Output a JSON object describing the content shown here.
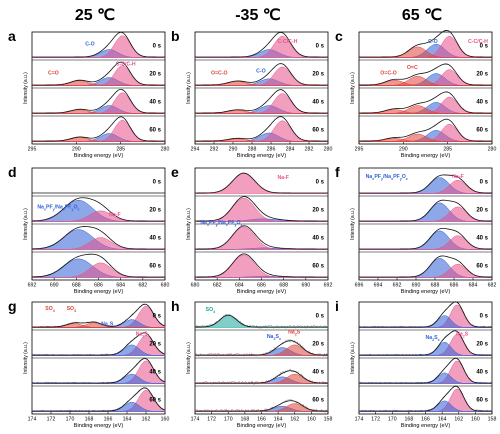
{
  "col_titles": [
    "25 ℃",
    "-35 ℃",
    "65 ℃"
  ],
  "colors": {
    "pink": "#e8518a",
    "blue": "#2f5fd6",
    "red": "#e0433a",
    "teal": "#19a69a",
    "envelope": "#111111",
    "raw": "#8c8c8c",
    "title": "#000000"
  },
  "chart_data": [
    {
      "type": "line",
      "panel": "a",
      "ylabel": "Intensity (a.u.)",
      "xlabel": "Binding energy (eV)",
      "xlim": [
        295,
        280
      ],
      "xticks": [
        295,
        290,
        285,
        280
      ],
      "times": [
        "0 s",
        "20 s",
        "40 s",
        "60 s"
      ],
      "series": [
        {
          "name": "C-O",
          "color": "blue",
          "center": 286.3,
          "width": 1.0,
          "amps": [
            0.3,
            0.3,
            0.3,
            0.3
          ]
        },
        {
          "name": "C-C/C-H",
          "color": "pink",
          "center": 284.8,
          "width": 0.9,
          "amps": [
            0.82,
            0.75,
            0.78,
            0.8
          ]
        },
        {
          "name": "C=O",
          "color": "red",
          "center": 289.6,
          "width": 1.0,
          "amps": [
            0.0,
            0.18,
            0.14,
            0.15
          ]
        }
      ],
      "annotations": [
        "C-O",
        "C=O",
        "C-C/C-H"
      ]
    },
    {
      "type": "line",
      "panel": "b",
      "ylabel": "Intensity (a.u.)",
      "xlabel": "Binding energy (eV)",
      "xlim": [
        294,
        280
      ],
      "xticks": [
        294,
        292,
        290,
        288,
        286,
        284,
        282,
        280
      ],
      "times": [
        "0 s",
        "20 s",
        "40 s",
        "60 s"
      ],
      "series": [
        {
          "name": "C-O",
          "color": "blue",
          "center": 286.2,
          "width": 1.0,
          "amps": [
            0.3,
            0.25,
            0.3,
            0.32
          ]
        },
        {
          "name": "C-C/C-H",
          "color": "pink",
          "center": 284.8,
          "width": 0.9,
          "amps": [
            0.8,
            0.7,
            0.75,
            0.78
          ]
        },
        {
          "name": "O=C-O",
          "color": "red",
          "center": 289.5,
          "width": 1.0,
          "amps": [
            0.0,
            0.15,
            0.12,
            0.1
          ]
        }
      ],
      "annotations": [
        "C-C/C-H",
        "O=C-O",
        "C-O"
      ]
    },
    {
      "type": "line",
      "panel": "c",
      "ylabel": "Intensity (a.u.)",
      "xlabel": "Binding energy (eV)",
      "xlim": [
        295,
        280
      ],
      "xticks": [
        295,
        290,
        285,
        280
      ],
      "times": [
        "0 s",
        "20 s",
        "40 s",
        "60 s"
      ],
      "series": [
        {
          "name": "C-O",
          "color": "blue",
          "center": 286.3,
          "width": 1.0,
          "amps": [
            0.5,
            0.45,
            0.42,
            0.42
          ]
        },
        {
          "name": "C-C/C-H",
          "color": "pink",
          "center": 284.8,
          "width": 0.9,
          "amps": [
            0.8,
            0.6,
            0.62,
            0.65
          ]
        },
        {
          "name": "O=C",
          "color": "red",
          "center": 288.4,
          "width": 1.0,
          "amps": [
            0.4,
            0.35,
            0.3,
            0.28
          ]
        },
        {
          "name": "O=C-O",
          "color": "red",
          "center": 291.0,
          "width": 1.0,
          "amps": [
            0.0,
            0.2,
            0.15,
            0.12
          ]
        }
      ],
      "annotations": [
        "C-O",
        "C-C/C-H",
        "O=C",
        "O=C-O"
      ]
    },
    {
      "type": "line",
      "panel": "d",
      "ylabel": "Intensity (a.u.)",
      "xlabel": "Binding energy (eV)",
      "xlim": [
        692,
        680
      ],
      "xticks": [
        692,
        690,
        688,
        686,
        684,
        682,
        680
      ],
      "times": [
        "0 s",
        "20 s",
        "40 s",
        "60 s"
      ],
      "series": [
        {
          "name": "NaxPFy/NaxPFyOz",
          "color": "blue",
          "center": 687.8,
          "width": 1.3,
          "amps": [
            0.0,
            0.8,
            0.75,
            0.7
          ]
        },
        {
          "name": "Na-F",
          "color": "pink",
          "center": 685.8,
          "width": 1.0,
          "amps": [
            0.0,
            0.4,
            0.45,
            0.55
          ]
        }
      ],
      "annotations": [
        "NaxPFy/NaxPFyOz",
        "Na-F"
      ]
    },
    {
      "type": "line",
      "panel": "e",
      "ylabel": "Intensity (a.u.)",
      "xlabel": "Binding energy (eV)",
      "xlim": [
        680,
        692
      ],
      "xticks": [
        680,
        682,
        684,
        686,
        688,
        690,
        692
      ],
      "times": [
        "0 s",
        "20 s",
        "40 s",
        "60 s"
      ],
      "series": [
        {
          "name": "NaxPFy/NaxPFyOz",
          "color": "blue",
          "center": 686.2,
          "width": 1.3,
          "amps": [
            0.0,
            0.1,
            0.06,
            0.05
          ]
        },
        {
          "name": "Na-F",
          "color": "pink",
          "center": 684.4,
          "width": 1.0,
          "amps": [
            0.75,
            0.88,
            0.85,
            0.85
          ]
        }
      ],
      "annotations": [
        "Na-F",
        "NaxPFy/NaxPFyOz"
      ]
    },
    {
      "type": "line",
      "panel": "f",
      "ylabel": "Intensity (a.u.)",
      "xlabel": "Binding energy (eV)",
      "xlim": [
        696,
        682
      ],
      "xticks": [
        696,
        694,
        692,
        690,
        688,
        686,
        684,
        682
      ],
      "times": [
        "0 s",
        "20 s",
        "40 s",
        "60 s"
      ],
      "series": [
        {
          "name": "NaxPFy/NaxPFyOz",
          "color": "blue",
          "center": 687.5,
          "width": 1.0,
          "amps": [
            0.6,
            0.7,
            0.7,
            0.72
          ]
        },
        {
          "name": "Na-F",
          "color": "pink",
          "center": 685.6,
          "width": 0.9,
          "amps": [
            0.5,
            0.55,
            0.52,
            0.5
          ]
        }
      ],
      "annotations": [
        "NaxPFy/NaxPFyOz",
        "Na-F"
      ]
    },
    {
      "type": "line",
      "panel": "g",
      "ylabel": "Intensity (a.u.)",
      "xlabel": "Binding energy (eV)",
      "xlim": [
        174,
        160
      ],
      "xticks": [
        174,
        172,
        170,
        168,
        166,
        164,
        162,
        160
      ],
      "times": [
        "0 s",
        "20 s",
        "40 s",
        "60 s"
      ],
      "series": [
        {
          "name": "Na2S",
          "color": "pink",
          "center": 162.0,
          "width": 0.8,
          "amps": [
            0.8,
            0.75,
            0.85,
            0.8
          ]
        },
        {
          "name": "Na2Sx",
          "color": "blue",
          "center": 163.5,
          "width": 0.8,
          "amps": [
            0.3,
            0.4,
            0.35,
            0.35
          ]
        },
        {
          "name": "SO4",
          "color": "red",
          "center": 169.5,
          "width": 0.8,
          "amps": [
            0.15,
            0.0,
            0.0,
            0.0
          ]
        },
        {
          "name": "SO3",
          "color": "red",
          "center": 167.5,
          "width": 0.8,
          "amps": [
            0.18,
            0.0,
            0.0,
            0.0
          ]
        }
      ],
      "annotations": [
        "SO4",
        "SO3",
        "Na2Sx",
        "Na2S"
      ]
    },
    {
      "type": "line",
      "panel": "h",
      "ylabel": "Intensity (a.u.)",
      "xlabel": "Binding energy (eV)",
      "xlim": [
        174,
        158
      ],
      "xticks": [
        174,
        172,
        170,
        168,
        166,
        164,
        162,
        160,
        158
      ],
      "times": [
        "0 s",
        "20 s",
        "40 s",
        "60 s"
      ],
      "series": [
        {
          "name": "SO4",
          "color": "teal",
          "center": 170.0,
          "width": 1.0,
          "amps": [
            0.45,
            0.0,
            0.0,
            0.0
          ]
        },
        {
          "name": "Na2Sx",
          "color": "blue",
          "center": 163.5,
          "width": 1.0,
          "amps": [
            0.0,
            0.3,
            0.25,
            0.2
          ]
        },
        {
          "name": "Na2S",
          "color": "red",
          "center": 162.0,
          "width": 1.0,
          "amps": [
            0.0,
            0.4,
            0.35,
            0.3
          ]
        }
      ],
      "annotations": [
        "SO4",
        "Na2Sx",
        "Na2S"
      ]
    },
    {
      "type": "line",
      "panel": "i",
      "ylabel": "Intensity (a.u.)",
      "xlabel": "Binding energy (eV)",
      "xlim": [
        174,
        158
      ],
      "xticks": [
        174,
        172,
        170,
        168,
        166,
        164,
        162,
        160,
        158
      ],
      "times": [
        "0 s",
        "20 s",
        "40 s",
        "60 s"
      ],
      "series": [
        {
          "name": "Na2S",
          "color": "pink",
          "center": 162.2,
          "width": 0.8,
          "amps": [
            0.85,
            0.8,
            0.85,
            0.85
          ]
        },
        {
          "name": "Na2Sx",
          "color": "blue",
          "center": 163.7,
          "width": 0.8,
          "amps": [
            0.45,
            0.5,
            0.4,
            0.4
          ]
        }
      ],
      "annotations": [
        "Na2Sx",
        "Na2S"
      ]
    }
  ]
}
